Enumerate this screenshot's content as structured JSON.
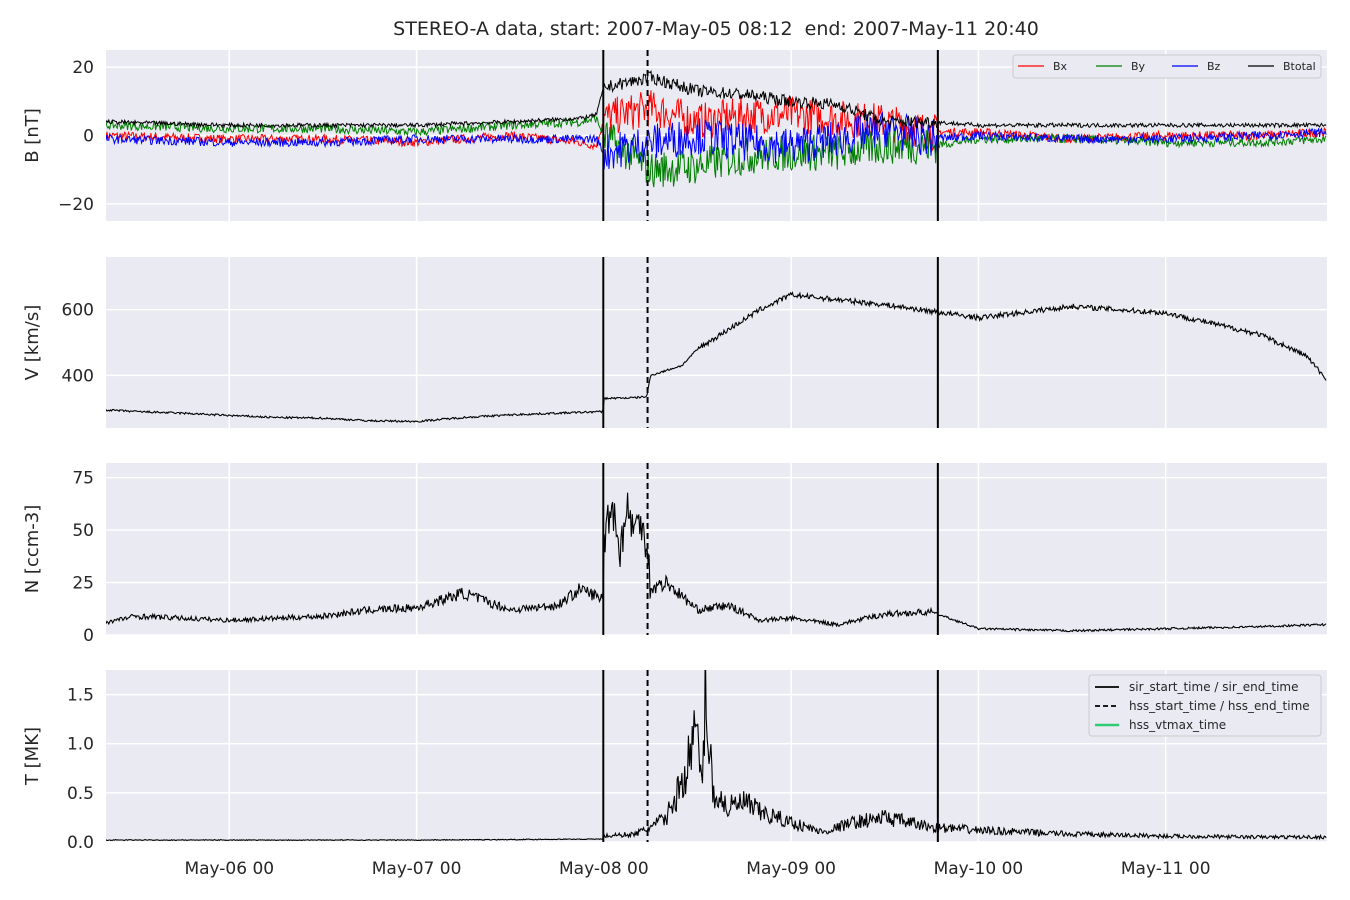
{
  "figure_title": "STEREO-A data, start: 2007-May-05 08:12  end: 2007-May-11 20:40",
  "x_ticks": [
    "May-06 00",
    "May-07 00",
    "May-08 00",
    "May-09 00",
    "May-10 00",
    "May-11 00"
  ],
  "colors": {
    "background": "#eaeaf2",
    "grid": "#ffffff",
    "bx": "#ff0000",
    "by": "#008000",
    "bz": "#0000ff",
    "btotal": "#000000",
    "hss_vtmax": "#2ecc71"
  },
  "chart_data": [
    {
      "type": "line",
      "ylabel": "B [nT]",
      "ylim": [
        -25,
        25
      ],
      "yticks": [
        "20",
        "0",
        "−20"
      ],
      "ytick_values": [
        20,
        0,
        -20
      ],
      "xlim_hours": [
        -15.8,
        140.67
      ],
      "legend": [
        "Bx",
        "By",
        "Bz",
        "Btotal"
      ],
      "legend_position": "top-right",
      "series": [
        {
          "name": "Bx",
          "x": [
            -15.8,
            0,
            12,
            24,
            36,
            45,
            47,
            48,
            54,
            60,
            66,
            72,
            78,
            84,
            90,
            96,
            108,
            120,
            132,
            140.67
          ],
          "values": [
            0,
            -1,
            -1,
            -2,
            0,
            -2,
            -3,
            5,
            8,
            4,
            6,
            6,
            5,
            4,
            1,
            1,
            -1,
            0,
            0,
            1
          ]
        },
        {
          "name": "By",
          "x": [
            -15.8,
            0,
            12,
            24,
            36,
            45,
            47,
            48,
            54,
            60,
            66,
            72,
            78,
            84,
            90,
            96,
            108,
            120,
            132,
            140.67
          ],
          "values": [
            3,
            2,
            2,
            1,
            3,
            4,
            5,
            0,
            -10,
            -9,
            -6,
            -5,
            -5,
            -3,
            -3,
            -1,
            -1,
            -2,
            -2,
            -1
          ]
        },
        {
          "name": "Bz",
          "x": [
            -15.8,
            0,
            12,
            24,
            36,
            45,
            47,
            48,
            54,
            60,
            66,
            72,
            78,
            84,
            90,
            96,
            108,
            120,
            132,
            140.67
          ],
          "values": [
            -1,
            -2,
            -2,
            -1,
            -1,
            -1,
            -1,
            -5,
            -2,
            0,
            -2,
            -3,
            -1,
            2,
            -1,
            0,
            -1,
            -1,
            0,
            1
          ]
        },
        {
          "name": "Btotal",
          "x": [
            -15.8,
            0,
            12,
            24,
            36,
            45,
            47,
            48,
            54,
            60,
            66,
            72,
            78,
            84,
            90,
            96,
            108,
            120,
            132,
            140.67
          ],
          "values": [
            4,
            3,
            3,
            3,
            4,
            5,
            6,
            14,
            17,
            13,
            12,
            10,
            9,
            4,
            4,
            3,
            3,
            3,
            3,
            3
          ]
        }
      ]
    },
    {
      "type": "line",
      "ylabel": "V [km/s]",
      "ylim": [
        240,
        760
      ],
      "yticks": [
        "600",
        "400"
      ],
      "ytick_values": [
        600,
        400
      ],
      "series": [
        {
          "x": [
            -15.8,
            -12,
            -6,
            0,
            6,
            12,
            18,
            24,
            30,
            36,
            42,
            47.9,
            48,
            52,
            53.5,
            54,
            58,
            60,
            64,
            68,
            72,
            84,
            96,
            108,
            120,
            132,
            138,
            140.67
          ],
          "values": [
            295,
            290,
            285,
            278,
            272,
            270,
            262,
            260,
            272,
            280,
            285,
            290,
            330,
            332,
            336,
            400,
            430,
            480,
            540,
            600,
            645,
            615,
            575,
            610,
            590,
            525,
            460,
            385
          ]
        }
      ]
    },
    {
      "type": "line",
      "ylabel": "N [ccm-3]",
      "ylim": [
        0,
        82
      ],
      "yticks": [
        "75",
        "50",
        "25",
        "0"
      ],
      "ytick_values": [
        75,
        50,
        25,
        0
      ],
      "series": [
        {
          "x": [
            -15.8,
            -12,
            -6,
            0,
            6,
            12,
            18,
            24,
            30,
            36,
            42,
            45,
            47.9,
            48,
            49,
            50,
            51,
            52,
            53,
            53.6,
            54,
            56,
            60,
            64,
            68,
            72,
            78,
            84,
            90,
            96,
            108,
            120,
            132,
            140.67
          ],
          "values": [
            6,
            9,
            8,
            7,
            8,
            9,
            12,
            13,
            20,
            12,
            14,
            22,
            17,
            45,
            65,
            40,
            60,
            50,
            55,
            40,
            22,
            25,
            12,
            14,
            7,
            8,
            5,
            10,
            11,
            3,
            2,
            3,
            4,
            5
          ]
        }
      ]
    },
    {
      "type": "line",
      "ylabel": "T [MK]",
      "ylim": [
        0,
        1.75
      ],
      "yticks": [
        "1.5",
        "1.0",
        "0.5",
        "0.0"
      ],
      "ytick_values": [
        1.5,
        1.0,
        0.5,
        0.0
      ],
      "legend": [
        "sir_start_time / sir_end_time",
        "hss_start_time / hss_end_time",
        "hss_vtmax_time"
      ],
      "legend_position": "top-right",
      "series": [
        {
          "x": [
            -15.8,
            0,
            24,
            47.9,
            48,
            52,
            54,
            56,
            58,
            60,
            60.5,
            61,
            62,
            64,
            66,
            68,
            72,
            76,
            80,
            84,
            90,
            96,
            108,
            120,
            132,
            140.67
          ],
          "values": [
            0.02,
            0.02,
            0.02,
            0.03,
            0.06,
            0.08,
            0.15,
            0.25,
            0.6,
            1.15,
            0.5,
            1.55,
            0.5,
            0.35,
            0.4,
            0.3,
            0.2,
            0.1,
            0.2,
            0.25,
            0.15,
            0.12,
            0.08,
            0.06,
            0.05,
            0.05
          ]
        }
      ]
    }
  ],
  "events_hours": {
    "sir_start": 47.93,
    "hss_start": 53.6,
    "sir_end": 90.8
  }
}
